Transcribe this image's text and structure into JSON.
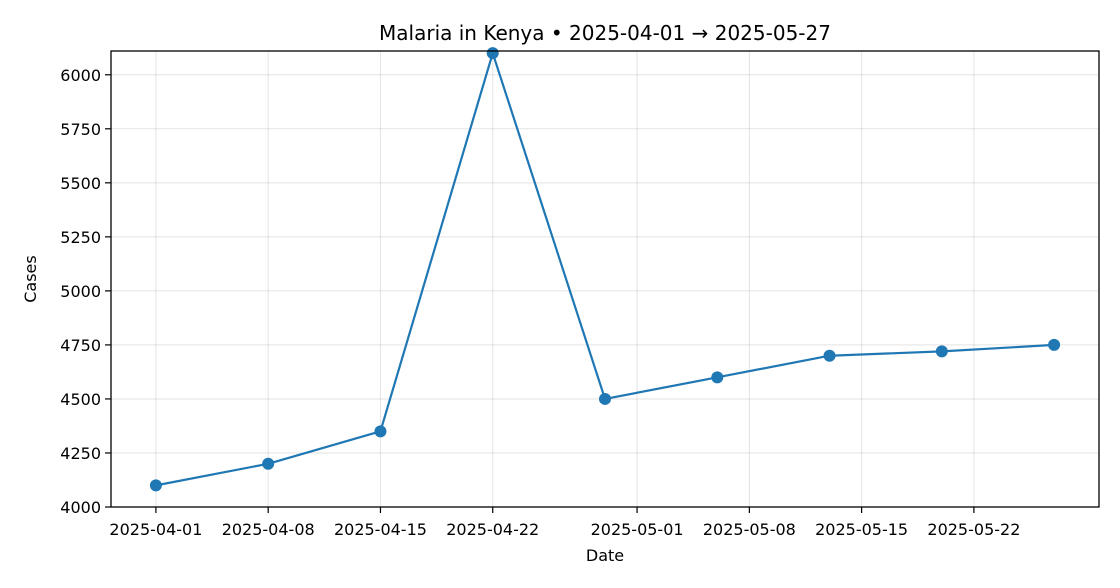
{
  "chart_data": {
    "type": "line",
    "title": "Malaria in Kenya • 2025-04-01 → 2025-05-27",
    "xlabel": "Date",
    "ylabel": "Cases",
    "x": [
      "2025-04-01",
      "2025-04-08",
      "2025-04-15",
      "2025-04-22",
      "2025-04-29",
      "2025-05-06",
      "2025-05-13",
      "2025-05-20",
      "2025-05-27"
    ],
    "series": [
      {
        "values": [
          4100,
          4200,
          4350,
          6100,
          4500,
          4600,
          4700,
          4720,
          4750
        ],
        "color": "#1f77b4"
      }
    ],
    "x_ticks": [
      "2025-04-01",
      "2025-04-08",
      "2025-04-15",
      "2025-04-22",
      "2025-05-01",
      "2025-05-08",
      "2025-05-15",
      "2025-05-22"
    ],
    "y_ticks": [
      4000,
      4250,
      4500,
      4750,
      5000,
      5250,
      5500,
      5750,
      6000
    ],
    "ylim": [
      4000,
      6110
    ],
    "grid": true
  }
}
